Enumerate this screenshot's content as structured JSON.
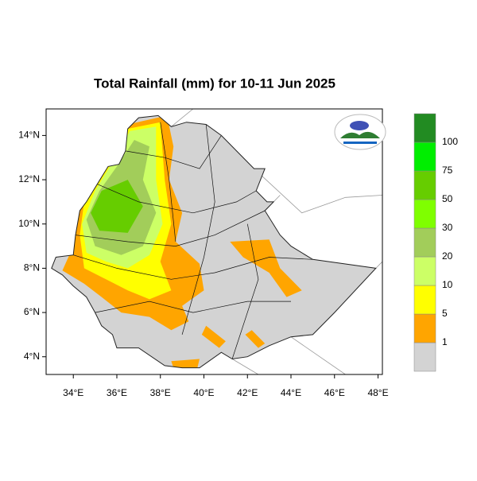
{
  "chart_data": {
    "type": "map",
    "title": "Total Rainfall (mm) for 10-11 Jun 2025",
    "xlim": [
      32.75,
      48.2
    ],
    "ylim": [
      3.2,
      15.2
    ],
    "xticks": [
      {
        "value": 34,
        "label": "34°E"
      },
      {
        "value": 36,
        "label": "36°E"
      },
      {
        "value": 38,
        "label": "38°E"
      },
      {
        "value": 40,
        "label": "40°E"
      },
      {
        "value": 42,
        "label": "42°E"
      },
      {
        "value": 44,
        "label": "44°E"
      },
      {
        "value": 46,
        "label": "46°E"
      },
      {
        "value": 48,
        "label": "48°E"
      }
    ],
    "yticks": [
      {
        "value": 4,
        "label": "4°N"
      },
      {
        "value": 6,
        "label": "6°N"
      },
      {
        "value": 8,
        "label": "8°N"
      },
      {
        "value": 10,
        "label": "10°N"
      },
      {
        "value": 12,
        "label": "12°N"
      },
      {
        "value": 14,
        "label": "14°N"
      }
    ],
    "legend": {
      "levels": [
        1,
        5,
        10,
        20,
        30,
        50,
        75,
        100
      ],
      "colors": [
        "#d3d3d3",
        "#ffa500",
        "#ffff00",
        "#ccff66",
        "#a2cd5a",
        "#7fff00",
        "#66cd00",
        "#00ee00",
        "#228b22"
      ]
    }
  }
}
